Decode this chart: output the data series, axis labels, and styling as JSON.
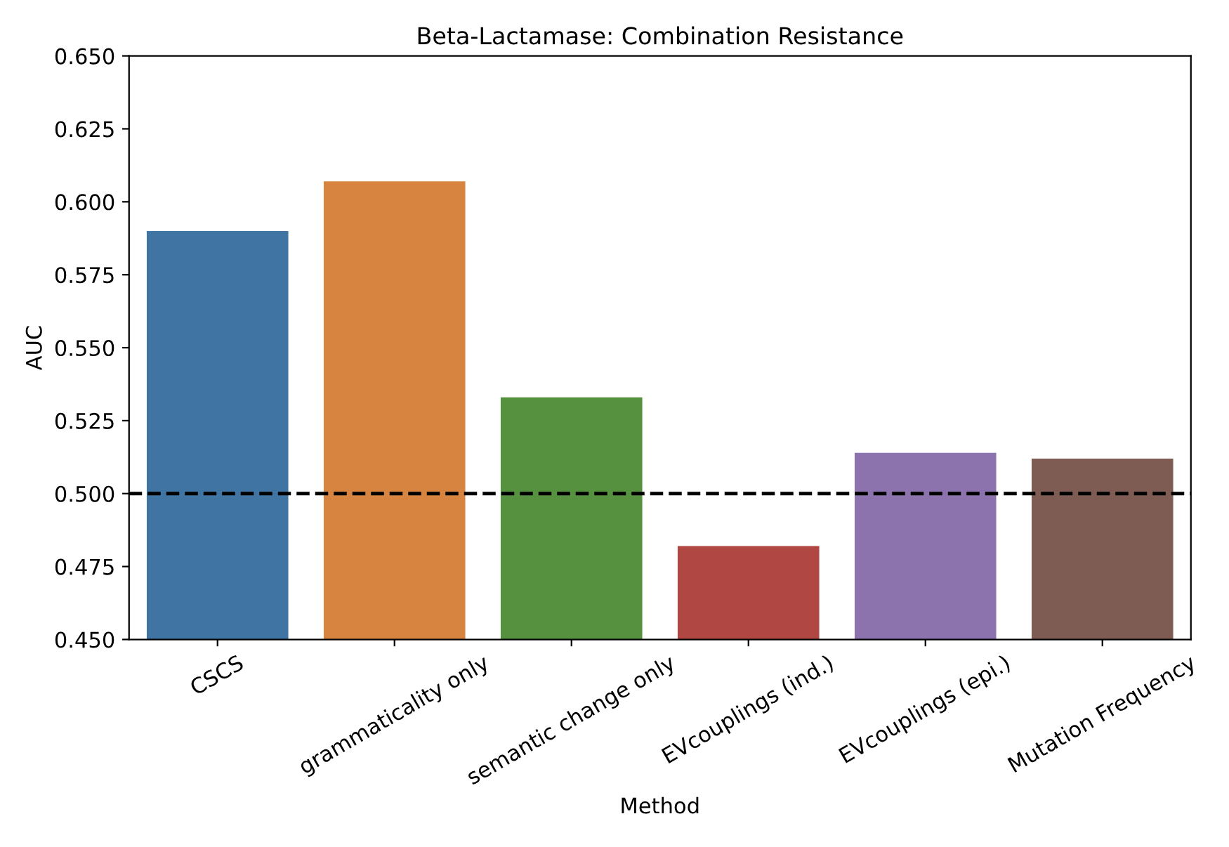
{
  "chart_data": {
    "type": "bar",
    "title": "Beta-Lactamase: Combination Resistance",
    "xlabel": "Method",
    "ylabel": "AUC",
    "categories": [
      "CSCS",
      "grammaticality only",
      "semantic change only",
      "EVcouplings (ind.)",
      "EVcouplings (epi.)",
      "Mutation Frequency"
    ],
    "values": [
      0.59,
      0.607,
      0.533,
      0.482,
      0.514,
      0.512
    ],
    "colors": [
      "#3f74a3",
      "#d6843f",
      "#55913f",
      "#b04743",
      "#8c73ad",
      "#7f5c53"
    ],
    "ylim": [
      0.45,
      0.65
    ],
    "yticks": [
      {
        "value": 0.45,
        "label": "0.450"
      },
      {
        "value": 0.475,
        "label": "0.475"
      },
      {
        "value": 0.5,
        "label": "0.500"
      },
      {
        "value": 0.525,
        "label": "0.525"
      },
      {
        "value": 0.55,
        "label": "0.550"
      },
      {
        "value": 0.575,
        "label": "0.575"
      },
      {
        "value": 0.6,
        "label": "0.600"
      },
      {
        "value": 0.625,
        "label": "0.625"
      },
      {
        "value": 0.65,
        "label": "0.650"
      }
    ],
    "ref_lines": [
      {
        "axis": "y",
        "value": 0.5,
        "color": "#000000",
        "line_style": "dashed"
      }
    ],
    "grid": false,
    "legend": false
  }
}
